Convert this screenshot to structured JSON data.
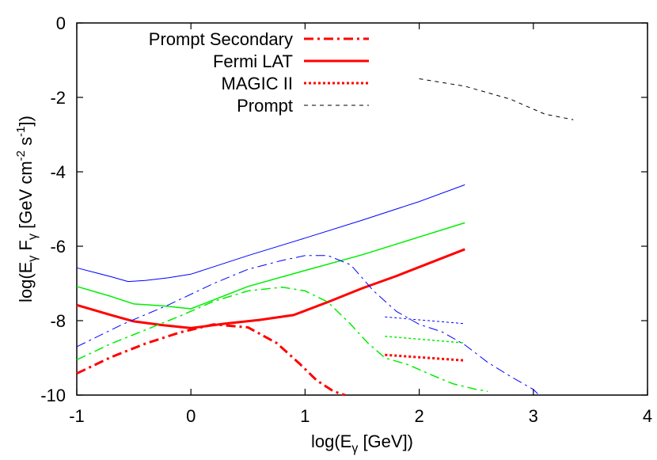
{
  "chart_data": {
    "type": "line",
    "xlabel": "log(E",
    "xlabel_sub": "γ",
    "xlabel_tail": " [GeV])",
    "ylabel": "log(E",
    "ylabel_sub1": "γ",
    "ylabel_mid": " F",
    "ylabel_sub2": "γ",
    "ylabel_unit_a": " [GeV cm",
    "ylabel_sup1": "-2",
    "ylabel_unit_b": " s",
    "ylabel_sup2": "-1",
    "ylabel_unit_c": "])",
    "xlim": [
      -1,
      4
    ],
    "ylim": [
      -10,
      0
    ],
    "xticks": [
      -1,
      0,
      1,
      2,
      3,
      4
    ],
    "yticks": [
      -10,
      -8,
      -6,
      -4,
      -2,
      0
    ],
    "grid": false,
    "legend_position": "top-left",
    "legend": [
      {
        "label": "Prompt Secondary",
        "color": "#ff0000",
        "dash": "dashdot",
        "width": 3
      },
      {
        "label": "Fermi LAT",
        "color": "#ff0000",
        "dash": "solid",
        "width": 3
      },
      {
        "label": "MAGIC II",
        "color": "#ff0000",
        "dash": "dotted",
        "width": 3
      },
      {
        "label": "Prompt",
        "color": "#000000",
        "dash": "dashed",
        "width": 1
      }
    ],
    "series": [
      {
        "color": "#ff0000",
        "dash": "solid",
        "width": 3,
        "x": [
          -1,
          -0.7,
          -0.5,
          -0.25,
          0,
          0.3,
          0.6,
          0.9,
          1.2,
          1.5,
          1.8,
          2.1,
          2.4
        ],
        "y": [
          -7.58,
          -7.85,
          -8.02,
          -8.12,
          -8.2,
          -8.08,
          -7.98,
          -7.85,
          -7.5,
          -7.13,
          -6.8,
          -6.44,
          -6.08
        ]
      },
      {
        "color": "#00ee00",
        "dash": "solid",
        "width": 1.5,
        "x": [
          -1,
          -0.7,
          -0.5,
          -0.25,
          0,
          0.5,
          1.0,
          1.5,
          2.0,
          2.4
        ],
        "y": [
          -7.08,
          -7.35,
          -7.55,
          -7.6,
          -7.68,
          -7.08,
          -6.65,
          -6.23,
          -5.75,
          -5.37
        ]
      },
      {
        "color": "#0000ff",
        "dash": "solid",
        "width": 1,
        "x": [
          -1,
          -0.7,
          -0.55,
          -0.4,
          -0.2,
          0,
          0.5,
          1.0,
          1.5,
          2.0,
          2.4
        ],
        "y": [
          -6.58,
          -6.82,
          -6.95,
          -6.92,
          -6.85,
          -6.75,
          -6.25,
          -5.78,
          -5.3,
          -4.8,
          -4.35
        ]
      },
      {
        "color": "#ff0000",
        "dash": "dashdot",
        "width": 3,
        "x": [
          -1,
          -0.7,
          -0.4,
          -0.1,
          0.2,
          0.5,
          0.75,
          0.95,
          1.1,
          1.25,
          1.35
        ],
        "y": [
          -9.42,
          -8.98,
          -8.62,
          -8.32,
          -8.1,
          -8.18,
          -8.6,
          -9.15,
          -9.6,
          -9.9,
          -10.0
        ]
      },
      {
        "color": "#00ee00",
        "dash": "dashdot",
        "width": 1.5,
        "x": [
          -1,
          -0.7,
          -0.4,
          -0.1,
          0.2,
          0.5,
          0.8,
          1.0,
          1.2,
          1.4,
          1.55,
          1.7,
          1.9,
          2.1,
          2.3,
          2.5,
          2.6
        ],
        "y": [
          -9.05,
          -8.62,
          -8.25,
          -7.88,
          -7.48,
          -7.2,
          -7.1,
          -7.2,
          -7.5,
          -8.1,
          -8.6,
          -9.0,
          -9.18,
          -9.45,
          -9.7,
          -9.85,
          -9.9
        ]
      },
      {
        "color": "#0000ff",
        "dash": "dashdot",
        "width": 1,
        "x": [
          -1,
          -0.6,
          -0.2,
          0.2,
          0.5,
          0.8,
          1.0,
          1.2,
          1.4,
          1.6,
          1.8,
          2.0,
          2.2,
          2.4,
          2.6,
          2.8,
          3.0,
          3.05
        ],
        "y": [
          -8.7,
          -8.1,
          -7.58,
          -7.0,
          -6.62,
          -6.38,
          -6.25,
          -6.25,
          -6.5,
          -7.2,
          -7.75,
          -8.1,
          -8.3,
          -8.65,
          -9.12,
          -9.5,
          -9.85,
          -10.0
        ]
      },
      {
        "color": "#ff0000",
        "dash": "dotted",
        "width": 3,
        "x": [
          1.7,
          2.4
        ],
        "y": [
          -8.92,
          -9.07
        ]
      },
      {
        "color": "#00ee00",
        "dash": "dotted",
        "width": 1.5,
        "x": [
          1.7,
          2.4
        ],
        "y": [
          -8.42,
          -8.6
        ]
      },
      {
        "color": "#0000ff",
        "dash": "dotted",
        "width": 1,
        "x": [
          1.7,
          2.4
        ],
        "y": [
          -7.9,
          -8.08
        ]
      },
      {
        "color": "#000000",
        "dash": "dashed",
        "width": 1,
        "x": [
          2.0,
          2.4,
          2.8,
          3.1,
          3.35
        ],
        "y": [
          -1.5,
          -1.7,
          -2.05,
          -2.45,
          -2.6
        ]
      }
    ]
  }
}
